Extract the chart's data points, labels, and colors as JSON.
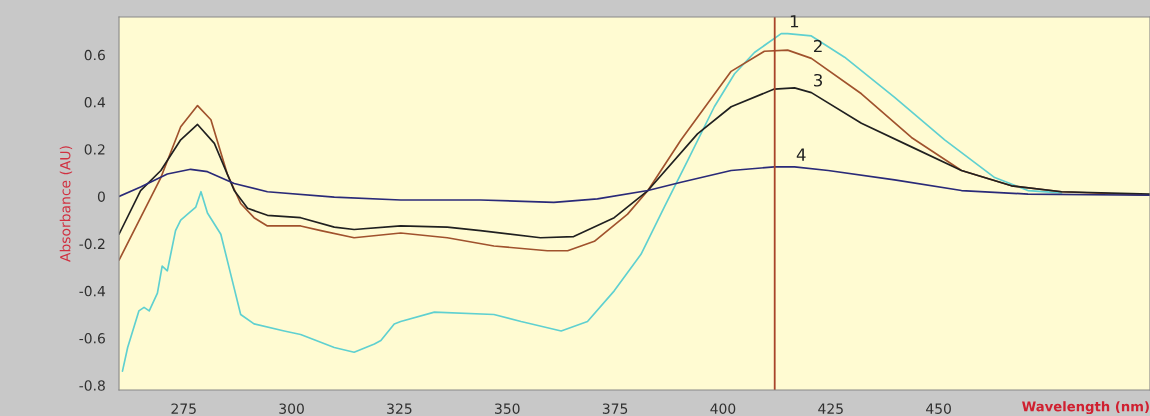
{
  "chart_data": {
    "type": "line",
    "xlabel": "Wavelength (nm)",
    "ylabel": "Absorbance (AU)",
    "xlim": [
      260,
      499
    ],
    "ylim": [
      -0.82,
      0.76
    ],
    "xticks": [
      275,
      300,
      325,
      350,
      375,
      400,
      425,
      450
    ],
    "yticks": [
      {
        "value": -0.8,
        "label": "-0.8"
      },
      {
        "value": -0.6,
        "label": "-0.6"
      },
      {
        "value": -0.4,
        "label": "-0.4"
      },
      {
        "value": -0.2,
        "label": "-0.2"
      },
      0,
      0.2,
      0.4,
      0.6
    ],
    "grid": false,
    "legend": false,
    "marker": "none",
    "line_style": "solid",
    "ref_lines": [
      {
        "axis": "x",
        "value": 412,
        "color": "#a8442a"
      }
    ],
    "series": [
      {
        "name": "1",
        "color": "#5fd0d0",
        "x": [
          260.8,
          262,
          264.6,
          265.8,
          267,
          268.9,
          270,
          271.2,
          273.1,
          274.3,
          275.9,
          277.8,
          279,
          280.5,
          283.6,
          285.9,
          288.2,
          291.3,
          298.3,
          302.1,
          309.9,
          314.5,
          319.2,
          320.7,
          323.8,
          325.3,
          333.1,
          346.9,
          353.2,
          362.5,
          368.6,
          374.8,
          381,
          386.4,
          391.9,
          398,
          402.7,
          407.3,
          413.5,
          415,
          420.5,
          428.2,
          439.8,
          451.4,
          463,
          470.7,
          478.5
        ],
        "values": [
          -0.74,
          -0.64,
          -0.485,
          -0.47,
          -0.485,
          -0.41,
          -0.295,
          -0.315,
          -0.145,
          -0.1,
          -0.075,
          -0.045,
          0.02,
          -0.07,
          -0.16,
          -0.33,
          -0.5,
          -0.54,
          -0.57,
          -0.585,
          -0.64,
          -0.66,
          -0.625,
          -0.61,
          -0.54,
          -0.53,
          -0.49,
          -0.5,
          -0.53,
          -0.57,
          -0.53,
          -0.4,
          -0.245,
          -0.045,
          0.155,
          0.38,
          0.52,
          0.61,
          0.69,
          0.69,
          0.68,
          0.59,
          0.42,
          0.24,
          0.08,
          0.025,
          0.015
        ]
      },
      {
        "name": "2",
        "color": "#a0522d",
        "x": [
          260,
          265,
          269.7,
          274.3,
          278.2,
          281.3,
          285.1,
          288.2,
          291.3,
          294.4,
          302.1,
          306.8,
          314.5,
          325.3,
          336.1,
          346.9,
          359.3,
          364,
          370.2,
          377.9,
          382.6,
          390.3,
          401.9,
          409.6,
          415,
          420.5,
          432.1,
          443.7,
          455.3,
          466.9,
          478.5,
          499
        ],
        "values": [
          -0.27,
          -0.09,
          0.08,
          0.295,
          0.385,
          0.325,
          0.095,
          -0.03,
          -0.09,
          -0.125,
          -0.125,
          -0.145,
          -0.175,
          -0.155,
          -0.175,
          -0.21,
          -0.23,
          -0.23,
          -0.19,
          -0.075,
          0.025,
          0.24,
          0.53,
          0.615,
          0.62,
          0.585,
          0.435,
          0.25,
          0.11,
          0.045,
          0.02,
          0.005
        ]
      },
      {
        "name": "3",
        "color": "#202020",
        "x": [
          260,
          265,
          269.7,
          274.3,
          278.2,
          282.1,
          286.7,
          289.8,
          294.4,
          302.1,
          309.9,
          314.5,
          325.3,
          336.1,
          343.8,
          357.7,
          365.4,
          374.8,
          382.6,
          394.1,
          401.9,
          411.9,
          416.6,
          420.5,
          432.1,
          443.7,
          455.3,
          466.9,
          478.5,
          499
        ],
        "values": [
          -0.16,
          0.025,
          0.11,
          0.24,
          0.305,
          0.225,
          0.025,
          -0.05,
          -0.08,
          -0.09,
          -0.13,
          -0.14,
          -0.125,
          -0.13,
          -0.145,
          -0.175,
          -0.17,
          -0.09,
          0.025,
          0.265,
          0.38,
          0.455,
          0.46,
          0.44,
          0.31,
          0.21,
          0.11,
          0.045,
          0.02,
          0.01
        ]
      },
      {
        "name": "4",
        "color": "#2a2a78",
        "x": [
          260,
          265,
          271.2,
          276.6,
          280.5,
          286.7,
          294.4,
          309.9,
          325.3,
          343.8,
          360.8,
          370.9,
          382.6,
          390.3,
          401.9,
          411.9,
          416.6,
          424.4,
          439.8,
          455.3,
          470.7,
          499
        ],
        "values": [
          0.0,
          0.04,
          0.095,
          0.115,
          0.105,
          0.055,
          0.02,
          -0.003,
          -0.015,
          -0.015,
          -0.025,
          -0.01,
          0.025,
          0.06,
          0.11,
          0.125,
          0.125,
          0.11,
          0.07,
          0.025,
          0.01,
          0.005
        ]
      }
    ]
  }
}
